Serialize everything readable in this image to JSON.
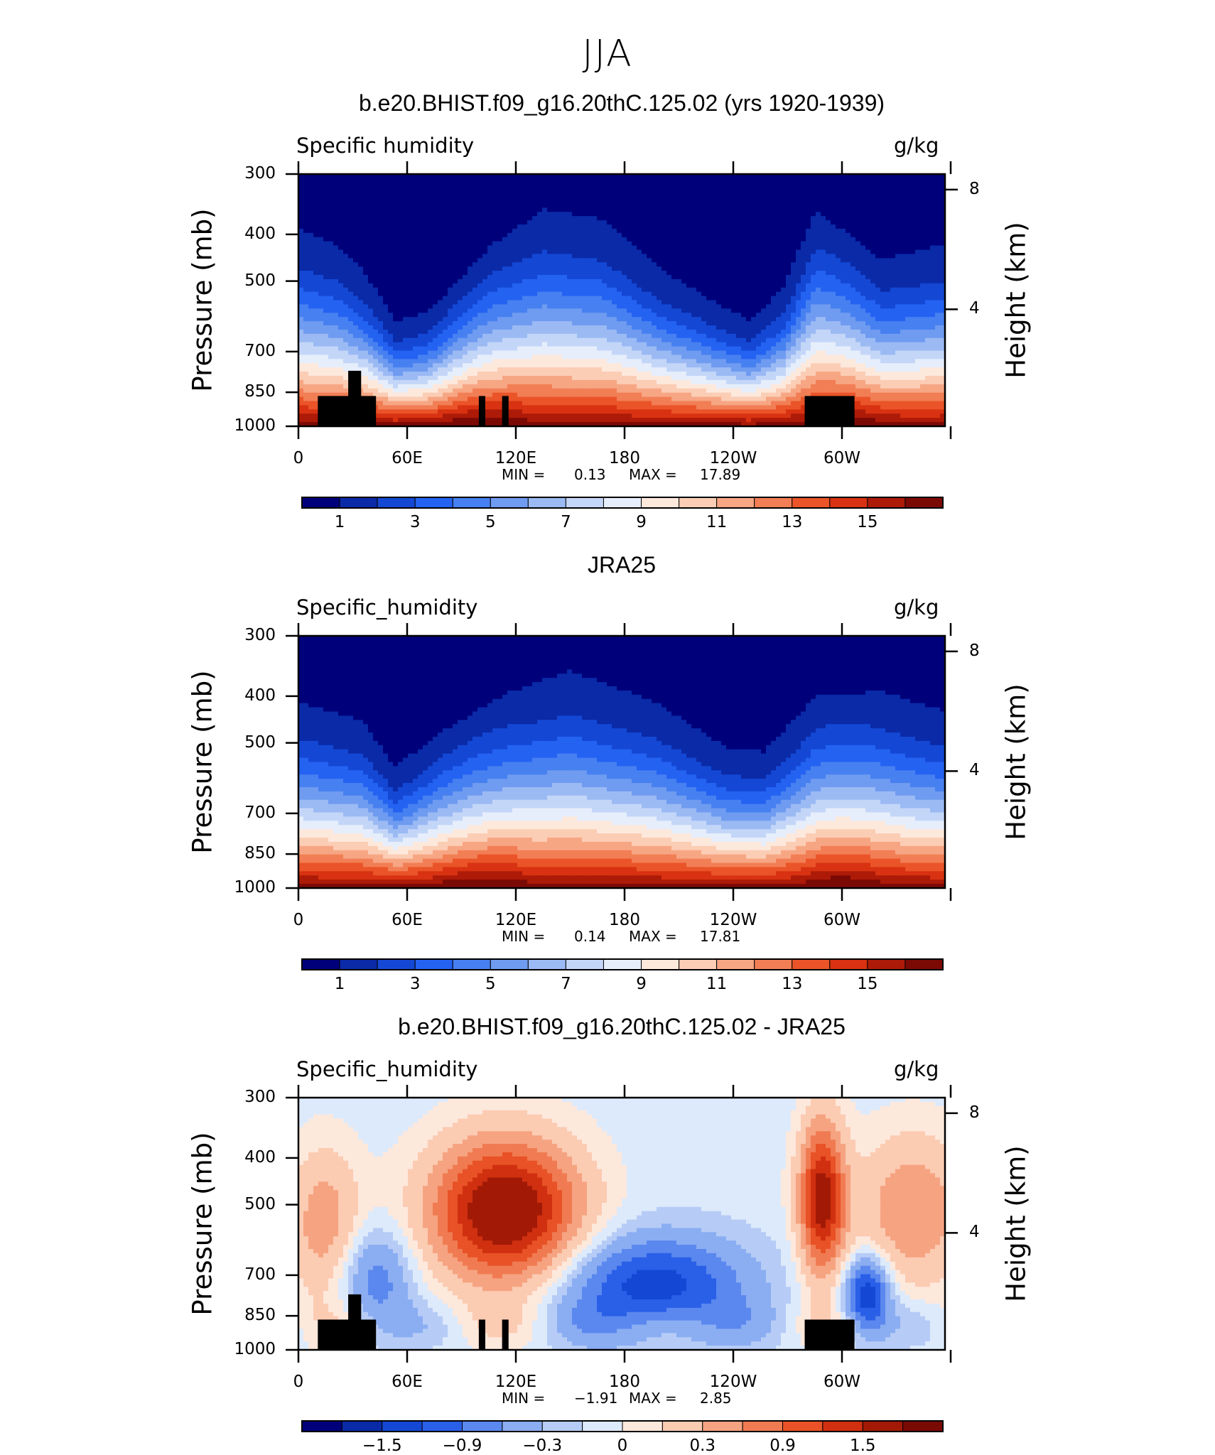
{
  "title": "JJA",
  "colors": {
    "abs_scale": [
      "#00007a",
      "#0a2aa8",
      "#1448d4",
      "#2462f2",
      "#4780f0",
      "#6f9bf0",
      "#9bbaf4",
      "#c4d6f8",
      "#e6eefb",
      "#fde8dc",
      "#fbcdb4",
      "#f7a684",
      "#f27e55",
      "#ea5428",
      "#d83212",
      "#ad1a08",
      "#7c0a04"
    ],
    "diff_scale": [
      "#00007a",
      "#0a2aa8",
      "#1448d4",
      "#2a5fe8",
      "#5a88ee",
      "#8badf2",
      "#b6ccf6",
      "#ddeafb",
      "#fde8dc",
      "#fbcbb2",
      "#f6a381",
      "#f07b52",
      "#e85226",
      "#d03010",
      "#a21a06",
      "#7a0a04"
    ],
    "topography": "#000000"
  },
  "chart_data": [
    {
      "type": "heatmap",
      "title": "b.e20.BHIST.f09_g16.20thC.125.02 (yrs 1920-1939)",
      "variable": "Specific humidity",
      "units": "g/kg",
      "ylabel": "Pressure (mb)",
      "ylabel_right": "Height (km)",
      "ylim": [
        1000,
        300
      ],
      "yticks": [
        300,
        400,
        500,
        700,
        850,
        1000
      ],
      "yticks_right": [
        4,
        8
      ],
      "xlim": [
        0,
        360
      ],
      "xticks": [
        "0",
        "60E",
        "120E",
        "180",
        "120W",
        "60W"
      ],
      "stats": {
        "min_label": "MIN =",
        "min": "0.13",
        "max_label": "MAX =",
        "max": "17.89"
      },
      "colorbar_labels": [
        "1",
        "3",
        "5",
        "7",
        "9",
        "11",
        "13",
        "15"
      ]
    },
    {
      "type": "heatmap",
      "title": "JRA25",
      "variable": "Specific_humidity",
      "units": "g/kg",
      "ylabel": "Pressure (mb)",
      "ylabel_right": "Height (km)",
      "ylim": [
        1000,
        300
      ],
      "yticks": [
        300,
        400,
        500,
        700,
        850,
        1000
      ],
      "yticks_right": [
        4,
        8
      ],
      "xlim": [
        0,
        360
      ],
      "xticks": [
        "0",
        "60E",
        "120E",
        "180",
        "120W",
        "60W"
      ],
      "stats": {
        "min_label": "MIN =",
        "min": "0.14",
        "max_label": "MAX =",
        "max": "17.81"
      },
      "colorbar_labels": [
        "1",
        "3",
        "5",
        "7",
        "9",
        "11",
        "13",
        "15"
      ]
    },
    {
      "type": "heatmap",
      "title": "b.e20.BHIST.f09_g16.20thC.125.02 - JRA25",
      "variable": "Specific_humidity",
      "units": "g/kg",
      "ylabel": "Pressure (mb)",
      "ylabel_right": "Height (km)",
      "ylim": [
        1000,
        300
      ],
      "yticks": [
        300,
        400,
        500,
        700,
        850,
        1000
      ],
      "yticks_right": [
        4,
        8
      ],
      "xlim": [
        0,
        360
      ],
      "xticks": [
        "0",
        "60E",
        "120E",
        "180",
        "120W",
        "60W"
      ],
      "stats": {
        "min_label": "MIN =",
        "min": "−1.91",
        "max_label": "MAX =",
        "max": "2.85"
      },
      "colorbar_labels": [
        "−1.5",
        "−0.9",
        "−0.3",
        "0",
        "0.3",
        "0.9",
        "1.5"
      ]
    }
  ]
}
